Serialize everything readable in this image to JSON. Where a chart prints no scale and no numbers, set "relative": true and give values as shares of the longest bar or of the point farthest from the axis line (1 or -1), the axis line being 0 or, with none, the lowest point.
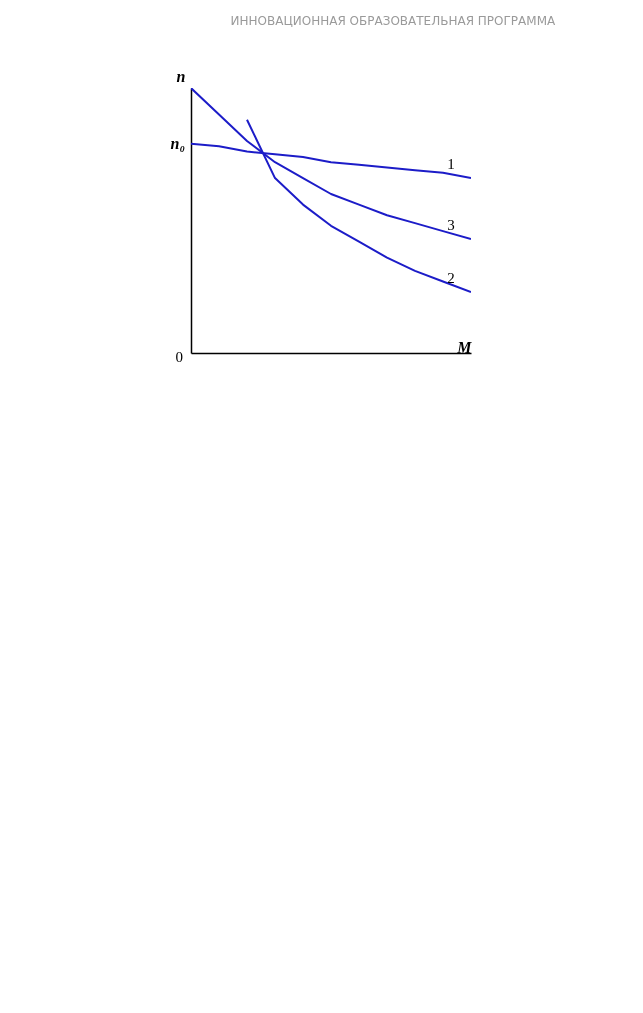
{
  "chart_data": {
    "type": "line",
    "title": "ИННОВАЦИОННАЯ ОБРАЗОВАТЕЛЬНАЯ ПРОГРАММА",
    "xlabel": "M",
    "ylabel": "n",
    "relative": true,
    "legend": false,
    "marker": "none",
    "line_style": "solid",
    "categories": [
      null,
      null,
      null,
      null,
      null,
      null,
      null,
      null,
      null,
      null,
      null
    ],
    "series": [
      {
        "name": "1",
        "color": "#1c1cc8",
        "values": [
          0.79,
          0.78,
          0.76,
          0.75,
          0.74,
          0.72,
          0.71,
          0.7,
          0.69,
          0.68,
          0.66
        ]
      },
      {
        "name": "2",
        "color": "#1c1cc8",
        "values": [
          null,
          null,
          0.88,
          0.66,
          0.56,
          0.48,
          0.42,
          0.36,
          0.31,
          0.27,
          0.23
        ]
      },
      {
        "name": "3",
        "color": "#1c1cc8",
        "values": [
          1,
          0.9,
          0.8,
          0.72,
          0.66,
          0.6,
          0.56,
          0.52,
          0.49,
          0.46,
          0.43
        ]
      }
    ],
    "annotations": [
      "n₀",
      "0"
    ]
  }
}
